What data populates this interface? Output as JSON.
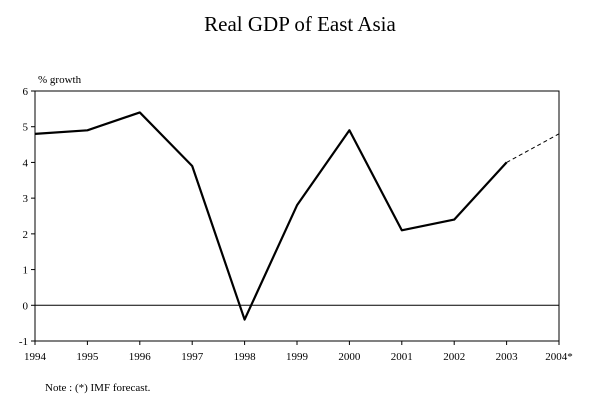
{
  "chart_data": {
    "type": "line",
    "title": "Real GDP of East Asia",
    "ylabel": "% growth",
    "xlabel": "",
    "categories": [
      "1994",
      "1995",
      "1996",
      "1997",
      "1998",
      "1999",
      "2000",
      "2001",
      "2002",
      "2003",
      "2004*"
    ],
    "ylim": [
      -1,
      6
    ],
    "yticks": [
      "-1",
      "0",
      "1",
      "2",
      "3",
      "4",
      "5",
      "6"
    ],
    "series": [
      {
        "values": [
          4.8,
          4.9,
          5.4,
          3.9,
          -0.4,
          2.8,
          4.9,
          2.1,
          2.4,
          4.0,
          null
        ],
        "style": "solid",
        "color": "#000000"
      },
      {
        "values": [
          null,
          null,
          null,
          null,
          null,
          null,
          null,
          null,
          null,
          4.0,
          4.8
        ],
        "style": "dashed",
        "color": "#000000"
      }
    ],
    "zero_line": true,
    "grid": false,
    "note": "Note : (*) IMF forecast."
  }
}
